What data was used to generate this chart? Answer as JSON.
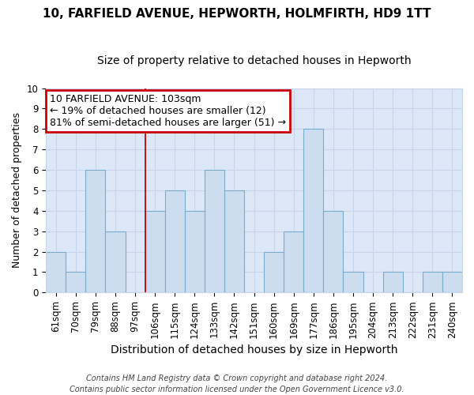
{
  "title": "10, FARFIELD AVENUE, HEPWORTH, HOLMFIRTH, HD9 1TT",
  "subtitle": "Size of property relative to detached houses in Hepworth",
  "xlabel": "Distribution of detached houses by size in Hepworth",
  "ylabel": "Number of detached properties",
  "categories": [
    "61sqm",
    "70sqm",
    "79sqm",
    "88sqm",
    "97sqm",
    "106sqm",
    "115sqm",
    "124sqm",
    "133sqm",
    "142sqm",
    "151sqm",
    "160sqm",
    "169sqm",
    "177sqm",
    "186sqm",
    "195sqm",
    "204sqm",
    "213sqm",
    "222sqm",
    "231sqm",
    "240sqm"
  ],
  "values": [
    2,
    1,
    6,
    3,
    0,
    4,
    5,
    4,
    6,
    5,
    0,
    2,
    3,
    8,
    4,
    1,
    0,
    1,
    0,
    1,
    1
  ],
  "bar_color": "#ccddf0",
  "bar_edge_color": "#7aaacc",
  "annotation_text_line1": "10 FARFIELD AVENUE: 103sqm",
  "annotation_text_line2": "← 19% of detached houses are smaller (12)",
  "annotation_text_line3": "81% of semi-detached houses are larger (51) →",
  "annotation_box_facecolor": "#ffffff",
  "annotation_box_edgecolor": "#cc0000",
  "vline_color": "#cc0000",
  "vline_x_index": 5,
  "ylim": [
    0,
    10
  ],
  "yticks": [
    0,
    1,
    2,
    3,
    4,
    5,
    6,
    7,
    8,
    9,
    10
  ],
  "grid_color": "#c8d4e8",
  "plot_bg_color": "#dce8f8",
  "fig_bg_color": "#ffffff",
  "footer": "Contains HM Land Registry data © Crown copyright and database right 2024.\nContains public sector information licensed under the Open Government Licence v3.0.",
  "title_fontsize": 11,
  "subtitle_fontsize": 10,
  "xlabel_fontsize": 10,
  "ylabel_fontsize": 9,
  "tick_fontsize": 8.5,
  "footer_fontsize": 7,
  "annot_fontsize": 9
}
